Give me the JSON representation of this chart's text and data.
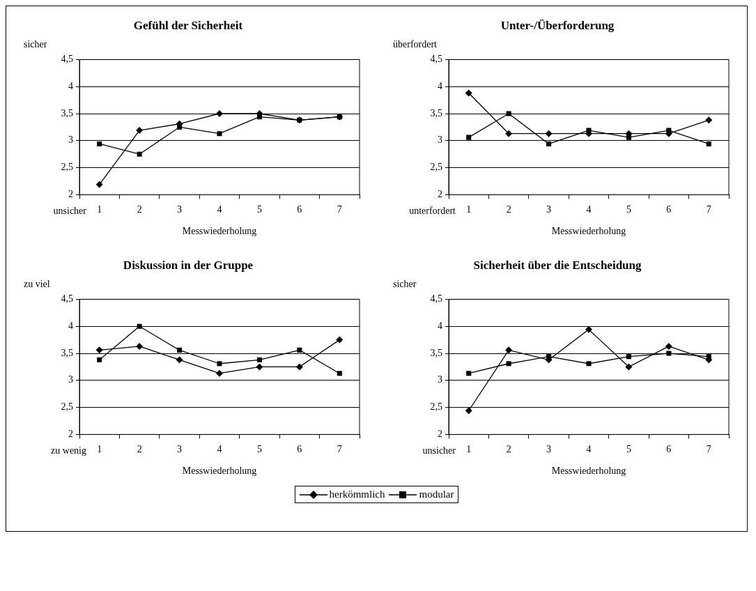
{
  "chart_data": [
    {
      "type": "line",
      "title": "Gefühl der Sicherheit",
      "ylabel": "sicher",
      "xlabel": "Messwiederholung",
      "annotations": [
        "unsicher"
      ],
      "categories": [
        "1",
        "2",
        "3",
        "4",
        "5",
        "6",
        "7"
      ],
      "ylim": [
        2,
        4.5
      ],
      "yticks": [
        2,
        {
          "value": 2.5,
          "label": "2,5"
        },
        3,
        {
          "value": 3.5,
          "label": "3,5"
        },
        4,
        {
          "value": 4.5,
          "label": "4,5"
        }
      ],
      "grid": "y",
      "legend": "bottom",
      "series": [
        {
          "name": "herkömmlich",
          "color": "#000000",
          "marker": "diamond",
          "values": [
            2.19,
            3.19,
            3.31,
            3.5,
            3.5,
            3.38,
            3.44
          ]
        },
        {
          "name": "modular",
          "color": "#000000",
          "marker": "square",
          "values": [
            2.94,
            2.75,
            3.25,
            3.13,
            3.44,
            3.38,
            3.44
          ]
        }
      ]
    },
    {
      "type": "line",
      "title": "Unter-/Überforderung",
      "ylabel": "überfordert",
      "xlabel": "Messwiederholung",
      "annotations": [
        "unterfordert"
      ],
      "categories": [
        "1",
        "2",
        "3",
        "4",
        "5",
        "6",
        "7"
      ],
      "ylim": [
        2,
        4.5
      ],
      "yticks": [
        2,
        {
          "value": 2.5,
          "label": "2,5"
        },
        3,
        {
          "value": 3.5,
          "label": "3,5"
        },
        4,
        {
          "value": 4.5,
          "label": "4,5"
        }
      ],
      "grid": "y",
      "series": [
        {
          "color": "#000000",
          "marker": "diamond",
          "values": [
            3.88,
            3.13,
            3.13,
            3.13,
            3.13,
            3.13,
            3.38
          ]
        },
        {
          "color": "#000000",
          "marker": "square",
          "values": [
            3.06,
            3.5,
            2.94,
            3.19,
            3.06,
            3.19,
            2.94
          ]
        }
      ]
    },
    {
      "type": "line",
      "title": "Diskussion in der Gruppe",
      "ylabel": "zu viel",
      "xlabel": "Messwiederholung",
      "annotations": [
        "zu wenig"
      ],
      "categories": [
        "1",
        "2",
        "3",
        "4",
        "5",
        "6",
        "7"
      ],
      "ylim": [
        2,
        4.5
      ],
      "yticks": [
        2,
        {
          "value": 2.5,
          "label": "2,5"
        },
        3,
        {
          "value": 3.5,
          "label": "3,5"
        },
        4,
        {
          "value": 4.5,
          "label": "4,5"
        }
      ],
      "grid": "y",
      "series": [
        {
          "color": "#000000",
          "marker": "diamond",
          "values": [
            3.56,
            3.63,
            3.38,
            3.13,
            3.25,
            3.25,
            3.75
          ]
        },
        {
          "color": "#000000",
          "marker": "square",
          "values": [
            3.38,
            4.0,
            3.56,
            3.31,
            3.38,
            3.56,
            3.13
          ]
        }
      ]
    },
    {
      "type": "line",
      "title": "Sicherheit über die Entscheidung",
      "ylabel": "sicher",
      "xlabel": "Messwiederholung",
      "annotations": [
        "unsicher"
      ],
      "categories": [
        "1",
        "2",
        "3",
        "4",
        "5",
        "6",
        "7"
      ],
      "ylim": [
        2,
        4.5
      ],
      "yticks": [
        2,
        {
          "value": 2.5,
          "label": "2,5"
        },
        3,
        {
          "value": 3.5,
          "label": "3,5"
        },
        4,
        {
          "value": 4.5,
          "label": "4,5"
        }
      ],
      "grid": "y",
      "series": [
        {
          "color": "#000000",
          "marker": "diamond",
          "values": [
            2.44,
            3.56,
            3.38,
            3.94,
            3.25,
            3.63,
            3.38
          ]
        },
        {
          "color": "#000000",
          "marker": "square",
          "values": [
            3.13,
            3.31,
            3.44,
            3.31,
            3.44,
            3.5,
            3.44
          ]
        }
      ]
    }
  ]
}
